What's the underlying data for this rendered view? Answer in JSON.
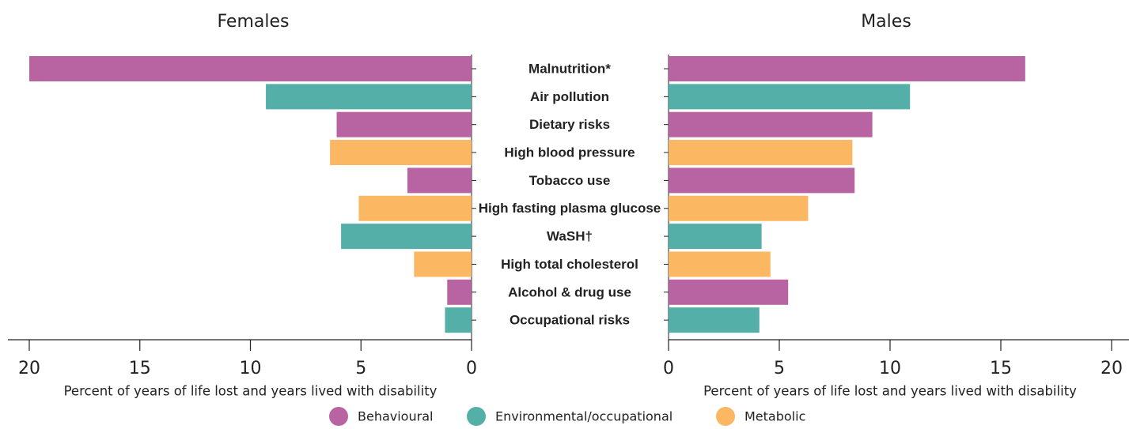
{
  "chart_data": {
    "type": "butterfly",
    "categories": [
      "Malnutrition*",
      "Air pollution",
      "Dietary risks",
      "High blood pressure",
      "Tobacco use",
      "High fasting plasma glucose",
      "WaSH†",
      "High total cholesterol",
      "Alcohol & drug use",
      "Occupational risks"
    ],
    "series": [
      {
        "name": "Females",
        "values": [
          20.0,
          9.3,
          6.1,
          6.4,
          2.9,
          5.1,
          5.9,
          2.6,
          1.1,
          1.2
        ],
        "colors": [
          "#b864a2",
          "#54afa9",
          "#b864a2",
          "#fbb762",
          "#b864a2",
          "#fbb762",
          "#54afa9",
          "#fbb762",
          "#b864a2",
          "#54afa9"
        ]
      },
      {
        "name": "Males",
        "values": [
          16.1,
          10.9,
          9.2,
          8.3,
          8.4,
          6.3,
          4.2,
          4.6,
          5.4,
          4.1
        ],
        "colors": [
          "#b864a2",
          "#54afa9",
          "#b864a2",
          "#fbb762",
          "#b864a2",
          "#fbb762",
          "#54afa9",
          "#fbb762",
          "#b864a2",
          "#54afa9"
        ]
      }
    ],
    "xlim": [
      0,
      20
    ],
    "xticks": [
      0,
      5,
      10,
      15,
      20
    ],
    "xlabel": "Percent of years of life lost and years lived with disability",
    "legend": [
      {
        "name": "Behavioural",
        "color": "#b864a2"
      },
      {
        "name": "Environmental/occupational",
        "color": "#54afa9"
      },
      {
        "name": "Metabolic",
        "color": "#fbb762"
      }
    ]
  }
}
